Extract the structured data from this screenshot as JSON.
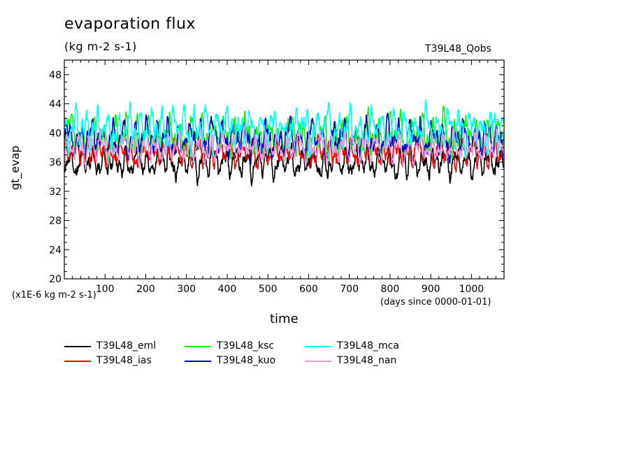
{
  "header": {
    "title": "evaporation flux",
    "units": "(kg m-2 s-1)",
    "run_label": "T39L48_Qobs"
  },
  "chart_data": {
    "type": "line",
    "ylabel": "gt_evap",
    "xlabel": "time",
    "y_scale_note": "(x1E-6 kg m-2 s-1)",
    "x_units": "(days since 0000-01-01)",
    "xlim": [
      0,
      1080
    ],
    "ylim": [
      20,
      50
    ],
    "x_ticks": [
      100,
      200,
      300,
      400,
      500,
      600,
      700,
      800,
      900,
      1000
    ],
    "x_tick_labels": [
      "100",
      "200",
      "300",
      "400",
      "500",
      "600",
      "700",
      "800",
      "900",
      "1000"
    ],
    "y_ticks": [
      20,
      24,
      28,
      32,
      36,
      40,
      44,
      48
    ],
    "y_tick_labels": [
      "20",
      "24",
      "28",
      "32",
      "36",
      "40",
      "44",
      "48"
    ],
    "x_start": 1,
    "x_step": 1,
    "series": [
      {
        "name": "T39L48_eml",
        "color": "#000000",
        "mean": 36.0,
        "amp": 1.3,
        "min": 32.7,
        "max": 39.6,
        "seed": 11
      },
      {
        "name": "T39L48_ias",
        "color": "#ff0000",
        "mean": 37.3,
        "amp": 1.1,
        "min": 34.2,
        "max": 40.2,
        "seed": 23
      },
      {
        "name": "T39L48_ksc",
        "color": "#00ff00",
        "mean": 39.6,
        "amp": 1.6,
        "min": 35.0,
        "max": 43.8,
        "seed": 37
      },
      {
        "name": "T39L48_kuo",
        "color": "#0000cc",
        "mean": 39.2,
        "amp": 1.5,
        "min": 35.3,
        "max": 44.2,
        "seed": 41
      },
      {
        "name": "T39L48_mca",
        "color": "#00ffff",
        "mean": 40.6,
        "amp": 1.6,
        "min": 36.0,
        "max": 44.6,
        "seed": 53
      },
      {
        "name": "T39L48_nan",
        "color": "#dda0dd",
        "mean": 38.0,
        "amp": 1.2,
        "min": 33.4,
        "max": 41.0,
        "seed": 67
      }
    ]
  },
  "legend": [
    {
      "label": "T39L48_eml",
      "color": "#000000"
    },
    {
      "label": "T39L48_ias",
      "color": "#ff0000"
    },
    {
      "label": "T39L48_ksc",
      "color": "#00ff00"
    },
    {
      "label": "T39L48_kuo",
      "color": "#0000cc"
    },
    {
      "label": "T39L48_mca",
      "color": "#00ffff"
    },
    {
      "label": "T39L48_nan",
      "color": "#dda0dd"
    }
  ]
}
